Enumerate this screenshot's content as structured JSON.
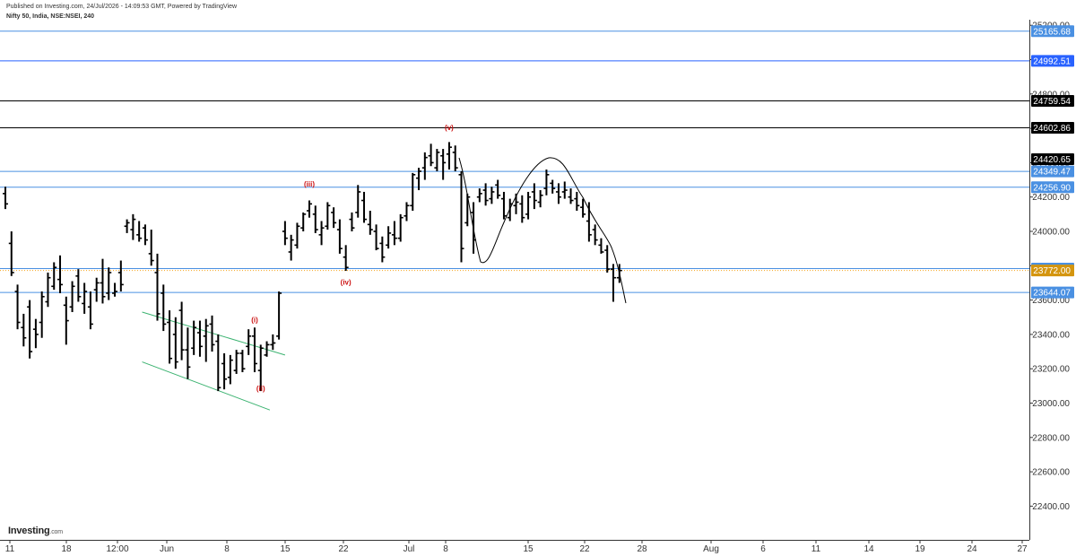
{
  "header": {
    "published": "Published on Investing.com, 24/Jul/2026 - 14:09:53 GMT, Powered by TradingView",
    "symbol": "Nifty 50, India, NSE:NSEI, 240"
  },
  "logo": {
    "name": "Investing",
    "suffix": ".com"
  },
  "chart_data": {
    "type": "ohlc",
    "title": "Nifty 50, India, NSE:NSEI, 240",
    "y_axis": {
      "min": 22300,
      "max": 25200,
      "ticks": [
        22400,
        22600,
        22800,
        23000,
        23200,
        23400,
        23600,
        23800,
        24000,
        24200,
        24400,
        24600,
        24800,
        25000,
        25200
      ],
      "side": "right"
    },
    "x_axis_labels": [
      "11",
      "18",
      "12:00",
      "Jun",
      "8",
      "15",
      "22",
      "Jul",
      "8",
      "15",
      "22",
      "28",
      "Aug",
      "6",
      "11",
      "14",
      "19",
      "24",
      "27"
    ],
    "grid": false,
    "price_levels": [
      {
        "value": 25165.68,
        "label": "25165.68",
        "color": "#4a90e2",
        "tag_bg": "#4a90e2"
      },
      {
        "value": 24992.51,
        "label": "24992.51",
        "color": "#2962ff",
        "tag_bg": "#2962ff"
      },
      {
        "value": 24759.54,
        "label": "24759.54",
        "color": "#000000",
        "tag_bg": "#000000"
      },
      {
        "value": 24602.86,
        "label": "24602.86",
        "color": "#000000",
        "tag_bg": "#000000"
      },
      {
        "value": 24420.65,
        "label": "24420.65",
        "color": "#000000",
        "tag_bg": "#000000",
        "tag_only": true
      },
      {
        "value": 24349.47,
        "label": "24349.47",
        "color": "#4a90e2",
        "tag_bg": "#4a90e2"
      },
      {
        "value": 24256.9,
        "label": "24256.90",
        "color": "#4a90e2",
        "tag_bg": "#4a90e2"
      },
      {
        "value": 23783.25,
        "label": "23783.25",
        "color": "#4a90e2",
        "tag_bg": "#4a90e2"
      },
      {
        "value": 23772.0,
        "label": "23772.00",
        "color": "#f5a623",
        "tag_bg": "#d4950f",
        "dotted": true
      },
      {
        "value": 23644.07,
        "label": "23644.07",
        "color": "#4a90e2",
        "tag_bg": "#4a90e2"
      }
    ],
    "wave_labels": [
      {
        "text": "(i)",
        "x_index": 41,
        "y": 23470
      },
      {
        "text": "(ii)",
        "x_index": 42,
        "y": 23070
      },
      {
        "text": "(iii)",
        "x_index": 50,
        "y": 24260
      },
      {
        "text": "(iv)",
        "x_index": 56,
        "y": 23690
      },
      {
        "text": "(v)",
        "x_index": 73,
        "y": 24590
      }
    ],
    "channel_lines": [
      {
        "from": [
          22.5,
          23530
        ],
        "to": [
          46,
          23280
        ]
      },
      {
        "from": [
          22.5,
          23240
        ],
        "to": [
          43.5,
          22960
        ]
      }
    ],
    "ohlc": [
      [
        24220,
        24260,
        24130,
        24160
      ],
      [
        23930,
        24000,
        23740,
        23760
      ],
      [
        23650,
        23690,
        23430,
        23470
      ],
      [
        23440,
        23520,
        23330,
        23380
      ],
      [
        23560,
        23600,
        23260,
        23300
      ],
      [
        23430,
        23490,
        23320,
        23400
      ],
      [
        23470,
        23650,
        23380,
        23620
      ],
      [
        23590,
        23760,
        23560,
        23730
      ],
      [
        23680,
        23820,
        23660,
        23790
      ],
      [
        23720,
        23860,
        23640,
        23690
      ],
      [
        23570,
        23620,
        23340,
        23480
      ],
      [
        23560,
        23710,
        23530,
        23680
      ],
      [
        23740,
        23780,
        23590,
        23620
      ],
      [
        23580,
        23700,
        23520,
        23650
      ],
      [
        23560,
        23650,
        23430,
        23460
      ],
      [
        23660,
        23730,
        23590,
        23700
      ],
      [
        23700,
        23840,
        23580,
        23620
      ],
      [
        23640,
        23790,
        23600,
        23760
      ],
      [
        23640,
        23700,
        23620,
        23650
      ],
      [
        23760,
        23830,
        23650,
        23690
      ],
      [
        24030,
        24070,
        23990,
        24050
      ],
      [
        24010,
        24100,
        23950,
        24070
      ],
      [
        23980,
        24060,
        23940,
        23960
      ],
      [
        24020,
        24040,
        23920,
        23950
      ],
      [
        23870,
        24010,
        23800,
        23830
      ],
      [
        23760,
        23870,
        23480,
        23520
      ],
      [
        23640,
        23690,
        23420,
        23460
      ],
      [
        23470,
        23540,
        23230,
        23260
      ],
      [
        23400,
        23500,
        23200,
        23240
      ],
      [
        23540,
        23590,
        23250,
        23310
      ],
      [
        23310,
        23440,
        23140,
        23210
      ],
      [
        23320,
        23480,
        23280,
        23440
      ],
      [
        23410,
        23480,
        23270,
        23330
      ],
      [
        23390,
        23490,
        23240,
        23450
      ],
      [
        23460,
        23510,
        23300,
        23340
      ],
      [
        23360,
        23400,
        23070,
        23090
      ],
      [
        23230,
        23290,
        23080,
        23140
      ],
      [
        23150,
        23280,
        23110,
        23250
      ],
      [
        23190,
        23310,
        23170,
        23290
      ],
      [
        23290,
        23310,
        23180,
        23200
      ],
      [
        23330,
        23430,
        23280,
        23390
      ],
      [
        23390,
        23440,
        23180,
        23230
      ],
      [
        23190,
        23340,
        23070,
        23320
      ],
      [
        23280,
        23360,
        23270,
        23340
      ],
      [
        23340,
        23400,
        23310,
        23350
      ],
      [
        23390,
        23650,
        23370,
        23640
      ],
      [
        24000,
        24060,
        23920,
        23960
      ],
      [
        23880,
        23980,
        23830,
        23950
      ],
      [
        23920,
        24050,
        23900,
        24030
      ],
      [
        24020,
        24110,
        24000,
        24100
      ],
      [
        24120,
        24180,
        24080,
        24160
      ],
      [
        24100,
        24150,
        23990,
        24010
      ],
      [
        23980,
        24060,
        23920,
        24020
      ],
      [
        24030,
        24170,
        24010,
        24150
      ],
      [
        24110,
        24140,
        24020,
        24050
      ],
      [
        24010,
        24070,
        23870,
        23900
      ],
      [
        23850,
        23920,
        23770,
        23790
      ],
      [
        24070,
        24110,
        24000,
        24020
      ],
      [
        24110,
        24270,
        24080,
        24230
      ],
      [
        24180,
        24230,
        24050,
        24070
      ],
      [
        24040,
        24120,
        23980,
        24010
      ],
      [
        24000,
        24040,
        23890,
        23900
      ],
      [
        23930,
        23970,
        23820,
        23850
      ],
      [
        23920,
        24030,
        23900,
        23990
      ],
      [
        23980,
        24060,
        23920,
        23960
      ],
      [
        23960,
        24100,
        23940,
        24080
      ],
      [
        24090,
        24170,
        24060,
        24150
      ],
      [
        24150,
        24340,
        24120,
        24330
      ],
      [
        24310,
        24370,
        24240,
        24350
      ],
      [
        24370,
        24460,
        24300,
        24430
      ],
      [
        24440,
        24510,
        24380,
        24400
      ],
      [
        24370,
        24480,
        24350,
        24460
      ],
      [
        24440,
        24480,
        24300,
        24400
      ],
      [
        24450,
        24520,
        24360,
        24490
      ],
      [
        24460,
        24500,
        24350,
        24370
      ],
      [
        24330,
        24350,
        23820,
        23900
      ],
      [
        24050,
        24220,
        24030,
        24200
      ],
      [
        24110,
        24170,
        23870,
        23950
      ],
      [
        24200,
        24250,
        24170,
        24220
      ],
      [
        24240,
        24280,
        24150,
        24180
      ],
      [
        24190,
        24260,
        24160,
        24230
      ],
      [
        24270,
        24300,
        24190,
        24210
      ],
      [
        24190,
        24230,
        24070,
        24090
      ],
      [
        24080,
        24190,
        24060,
        24160
      ],
      [
        24150,
        24220,
        24100,
        24170
      ],
      [
        24160,
        24210,
        24050,
        24080
      ],
      [
        24100,
        24230,
        24070,
        24200
      ],
      [
        24230,
        24280,
        24130,
        24180
      ],
      [
        24170,
        24240,
        24140,
        24210
      ],
      [
        24250,
        24360,
        24210,
        24330
      ],
      [
        24280,
        24300,
        24220,
        24250
      ],
      [
        24230,
        24280,
        24160,
        24200
      ],
      [
        24230,
        24290,
        24190,
        24240
      ],
      [
        24200,
        24250,
        24160,
        24180
      ],
      [
        24190,
        24230,
        24120,
        24150
      ],
      [
        24140,
        24190,
        24080,
        24100
      ],
      [
        24060,
        24170,
        23940,
        23980
      ],
      [
        24010,
        24040,
        23920,
        23950
      ],
      [
        23920,
        23960,
        23870,
        23880
      ],
      [
        23890,
        23920,
        23760,
        23780
      ],
      [
        23780,
        23810,
        23590,
        23730
      ],
      [
        23730,
        23810,
        23700,
        23772
      ]
    ]
  }
}
